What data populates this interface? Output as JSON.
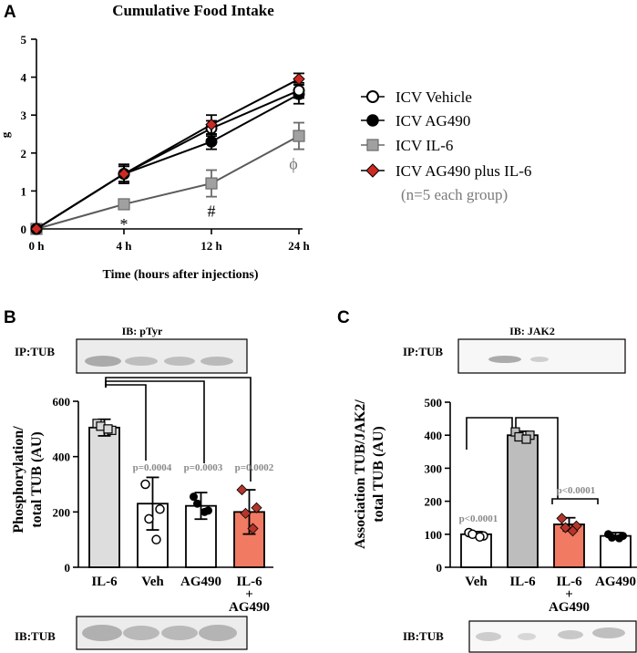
{
  "colors": {
    "vehicle": "#ffffff",
    "ag490": "#000000",
    "il6": "#a0a0a0",
    "ag490_il6": "#cc2a22",
    "bar_il6": "#dddddd",
    "bar_il6_c": "#bdbdbd",
    "bar_combo": "#f07a62",
    "pval_text": "#8a8a8a"
  },
  "panels": {
    "a": "A",
    "b": "B",
    "c": "C"
  },
  "chart_data": [
    {
      "id": "A",
      "type": "line",
      "title": "Cumulative Food Intake",
      "xlabel": "Time (hours after injections)",
      "ylabel": "g",
      "categories": [
        "0 h",
        "4 h",
        "12 h",
        "24 h"
      ],
      "yticks": [
        0,
        1,
        2,
        3,
        4,
        5
      ],
      "ylim": [
        0,
        5
      ],
      "series": [
        {
          "name": "ICV Vehicle",
          "marker": "circle-open",
          "values": [
            0,
            1.45,
            2.65,
            3.65
          ],
          "errors": [
            0,
            0.25,
            0.2,
            0.2
          ]
        },
        {
          "name": "ICV AG490",
          "marker": "circle-filled",
          "values": [
            0,
            1.45,
            2.3,
            3.55
          ],
          "errors": [
            0,
            0.25,
            0.2,
            0.25
          ]
        },
        {
          "name": "ICV IL-6",
          "marker": "square",
          "values": [
            0,
            0.65,
            1.2,
            2.45
          ],
          "errors": [
            0,
            0.1,
            0.35,
            0.35
          ]
        },
        {
          "name": "ICV AG490 plus IL-6",
          "marker": "diamond",
          "values": [
            0,
            1.45,
            2.75,
            3.95
          ],
          "errors": [
            0,
            0.2,
            0.25,
            0.15
          ]
        }
      ],
      "legend_note": "(n=5 each group)",
      "annotations": [
        {
          "text": "*",
          "category": "4 h"
        },
        {
          "text": "#",
          "category": "12 h"
        },
        {
          "text": "ϕ",
          "category": "24 h"
        }
      ]
    },
    {
      "id": "B",
      "type": "bar",
      "blot_top_title": "IB: pTyr",
      "blot_top_label": "IP:TUB",
      "blot_bottom_label": "IB:TUB",
      "ylabel_line1": "Phosphorylation/",
      "ylabel_line2": "total TUB (AU)",
      "yticks": [
        0,
        200,
        400,
        600
      ],
      "ylim": [
        0,
        600
      ],
      "categories": [
        "IL-6",
        "Veh",
        "AG490",
        "IL-6\n+\nAG490"
      ],
      "values": [
        505,
        230,
        222,
        200
      ],
      "errors": [
        30,
        95,
        48,
        80
      ],
      "points": [
        [
          520,
          495,
          510,
          500
        ],
        [
          300,
          210,
          175,
          100
        ],
        [
          255,
          205,
          230,
          200
        ],
        [
          280,
          215,
          195,
          140
        ]
      ],
      "pvalues": [
        "",
        "p=0.0004",
        "p=0.0003",
        "p=0.0002"
      ]
    },
    {
      "id": "C",
      "type": "bar",
      "blot_top_title": "IB: JAK2",
      "blot_top_label": "IP:TUB",
      "blot_bottom_label": "IB:TUB",
      "ylabel_line1": "Association TUB/JAK2/",
      "ylabel_line2": "total TUB (AU)",
      "yticks": [
        0,
        100,
        200,
        300,
        400,
        500
      ],
      "ylim": [
        0,
        500
      ],
      "categories": [
        "Veh",
        "IL-6",
        "IL-6\n+\nAG490",
        "AG490"
      ],
      "values": [
        100,
        400,
        130,
        95
      ],
      "errors": [
        8,
        12,
        20,
        10
      ],
      "points": [
        [
          105,
          95,
          100,
          92
        ],
        [
          410,
          400,
          395,
          388
        ],
        [
          148,
          125,
          120,
          110
        ],
        [
          100,
          95,
          90,
          88
        ]
      ],
      "pvalues": [
        "p<0.0001",
        "",
        "p<0.0001",
        ""
      ]
    }
  ]
}
